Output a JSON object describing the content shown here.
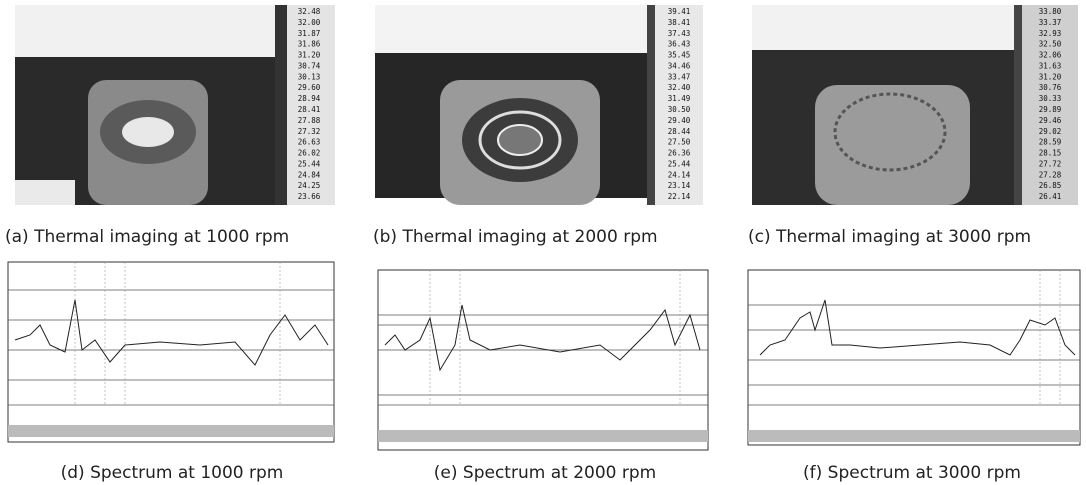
{
  "panels": [
    {
      "caption": "(a) Thermal imaging at 1000 rpm",
      "scale": [
        "32.48",
        "32.00",
        "31.87",
        "31.86",
        "31.20",
        "30.74",
        "30.13",
        "29.60",
        "28.94",
        "28.41",
        "27.88",
        "27.32",
        "26.63",
        "26.02",
        "25.44",
        "24.84",
        "24.25",
        "23.66"
      ]
    },
    {
      "caption": "(b) Thermal imaging at 2000 rpm",
      "scale": [
        "39.41",
        "38.41",
        "37.43",
        "36.43",
        "35.45",
        "34.46",
        "33.47",
        "32.40",
        "31.49",
        "30.50",
        "29.40",
        "28.44",
        "27.50",
        "26.36",
        "25.44",
        "24.14",
        "23.14",
        "22.14"
      ]
    },
    {
      "caption": "(c) Thermal imaging at 3000 rpm",
      "scale": [
        "33.80",
        "33.37",
        "32.93",
        "32.50",
        "32.06",
        "31.63",
        "31.20",
        "30.76",
        "30.33",
        "29.89",
        "29.46",
        "29.02",
        "28.59",
        "28.15",
        "27.72",
        "27.28",
        "26.85",
        "26.41"
      ]
    },
    {
      "caption": "(d) Spectrum at 1000 rpm"
    },
    {
      "caption": "(e) Spectrum at 2000 rpm"
    },
    {
      "caption": "(f) Spectrum at 3000 rpm"
    }
  ]
}
